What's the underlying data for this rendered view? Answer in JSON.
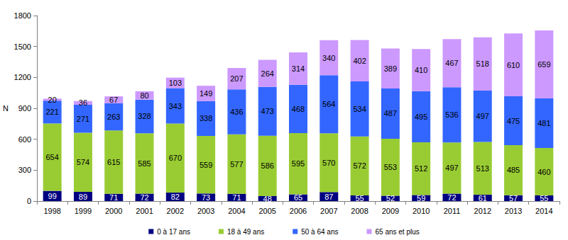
{
  "chart_data": {
    "type": "bar",
    "stacked": true,
    "data_labels": true,
    "grid": false,
    "legend": "bottom",
    "y_label": "N",
    "categories": [
      "1998",
      "1999",
      "2000",
      "2001",
      "2002",
      "2003",
      "2004",
      "2005",
      "2006",
      "2007",
      "2008",
      "2009",
      "2010",
      "2011",
      "2012",
      "2013",
      "2014"
    ],
    "ylim": [
      0,
      1800
    ],
    "yticks": [
      0,
      300,
      600,
      900,
      1200,
      1500,
      1800
    ],
    "series": [
      {
        "name": "0 à 17 ans",
        "color": "#000080",
        "values": [
          99,
          89,
          71,
          72,
          82,
          73,
          71,
          48,
          65,
          87,
          55,
          52,
          59,
          72,
          61,
          57,
          55
        ]
      },
      {
        "name": "18 à 49 ans",
        "color": "#99cc33",
        "values": [
          654,
          574,
          615,
          585,
          670,
          559,
          577,
          586,
          595,
          570,
          572,
          553,
          512,
          497,
          513,
          485,
          460
        ]
      },
      {
        "name": "50 à 64 ans",
        "color": "#3366ff",
        "values": [
          221,
          271,
          263,
          328,
          343,
          338,
          436,
          473,
          468,
          564,
          534,
          487,
          495,
          536,
          497,
          475,
          481
        ]
      },
      {
        "name": "65 ans et plus",
        "color": "#cc99ff",
        "values": [
          20,
          36,
          67,
          80,
          103,
          149,
          207,
          264,
          314,
          340,
          402,
          389,
          410,
          467,
          518,
          610,
          659
        ]
      }
    ]
  }
}
